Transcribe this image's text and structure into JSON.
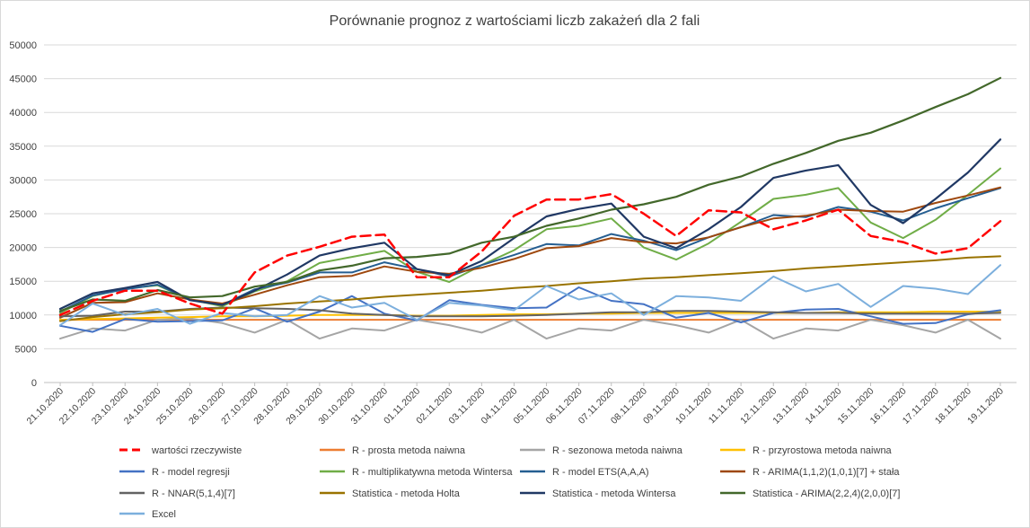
{
  "chart_data": {
    "type": "line",
    "title": "Porównanie prognoz z wartościami liczb zakażeń dla 2 fali",
    "xlabel": "",
    "ylabel": "",
    "ylim": [
      0,
      50000
    ],
    "yticks": [
      0,
      5000,
      10000,
      15000,
      20000,
      25000,
      30000,
      35000,
      40000,
      45000,
      50000
    ],
    "grid": true,
    "legend_position": "bottom",
    "categories": [
      "21.10.2020",
      "22.10.2020",
      "23.10.2020",
      "24.10.2020",
      "25.10.2020",
      "26.10.2020",
      "27.10.2020",
      "28.10.2020",
      "29.10.2020",
      "30.10.2020",
      "31.10.2020",
      "01.11.2020",
      "02.11.2020",
      "03.11.2020",
      "04.11.2020",
      "05.11.2020",
      "06.11.2020",
      "07.11.2020",
      "08.11.2020",
      "09.11.2020",
      "10.11.2020",
      "11.11.2020",
      "12.11.2020",
      "13.11.2020",
      "14.11.2020",
      "15.11.2020",
      "16.11.2020",
      "17.11.2020",
      "18.11.2020",
      "19.11.2020"
    ],
    "series": [
      {
        "name": "wartości rzeczywiste",
        "color": "#ff0000",
        "dashed": true,
        "width": 2.5,
        "values": [
          10000,
          12100,
          13600,
          13600,
          11700,
          10200,
          16300,
          18800,
          20100,
          21600,
          21900,
          15600,
          15600,
          19400,
          24700,
          27100,
          27100,
          27900,
          25000,
          21700,
          25500,
          25200,
          22700,
          24000,
          25600,
          21700,
          20800,
          19100,
          19900,
          23900
        ]
      },
      {
        "name": "R - prosta metoda naiwna",
        "color": "#ed7d31",
        "width": 2,
        "values": [
          9300,
          9300,
          9300,
          9300,
          9300,
          9300,
          9300,
          9300,
          9300,
          9300,
          9300,
          9300,
          9300,
          9300,
          9300,
          9300,
          9300,
          9300,
          9300,
          9300,
          9300,
          9300,
          9300,
          9300,
          9300,
          9300,
          9300,
          9300,
          9300,
          9300
        ]
      },
      {
        "name": "R - sezonowa metoda naiwna",
        "color": "#a5a5a5",
        "width": 2,
        "values": [
          6500,
          8000,
          7700,
          9300,
          9500,
          8800,
          7400,
          9300,
          6500,
          8000,
          7700,
          9300,
          8500,
          7400,
          9300,
          6500,
          8000,
          7700,
          9300,
          8500,
          7400,
          9300,
          6500,
          8000,
          7700,
          9300,
          8500,
          7400,
          9300,
          6500
        ]
      },
      {
        "name": "R - przyrostowa metoda naiwna",
        "color": "#ffc000",
        "width": 2,
        "values": [
          9300,
          9400,
          9500,
          9600,
          9700,
          9800,
          9800,
          9900,
          10000,
          10000,
          10000,
          9900,
          9900,
          10000,
          10100,
          10100,
          10200,
          10200,
          10300,
          10300,
          10300,
          10300,
          10300,
          10300,
          10400,
          10400,
          10400,
          10500,
          10500,
          10500
        ]
      },
      {
        "name": "R - model regresji",
        "color": "#4472c4",
        "width": 2,
        "values": [
          8400,
          7500,
          9400,
          9000,
          9100,
          9200,
          11000,
          9000,
          10500,
          12800,
          10200,
          9200,
          12200,
          11500,
          11000,
          11100,
          14100,
          12100,
          11600,
          9600,
          10300,
          8900,
          10300,
          10800,
          10900,
          9800,
          8700,
          8800,
          10100,
          10700
        ]
      },
      {
        "name": "R - multiplikatywna metoda Wintersa",
        "color": "#70ad47",
        "width": 2,
        "values": [
          10300,
          12800,
          13900,
          14400,
          12300,
          11300,
          13500,
          15000,
          17700,
          18600,
          19500,
          16400,
          14900,
          17400,
          19600,
          22700,
          23200,
          24300,
          20000,
          18200,
          20600,
          23800,
          27200,
          27800,
          28800,
          23700,
          21400,
          24100,
          27800,
          31700
        ]
      },
      {
        "name": "R - model ETS(A,A,A)",
        "color": "#255e91",
        "width": 2,
        "values": [
          10500,
          12900,
          13800,
          14500,
          12300,
          11500,
          13800,
          14800,
          16300,
          16300,
          17800,
          16800,
          15700,
          17400,
          18900,
          20500,
          20300,
          22000,
          21000,
          19600,
          21500,
          23000,
          24800,
          24500,
          26000,
          25300,
          24000,
          25800,
          27300,
          28800
        ]
      },
      {
        "name": "R - ARIMA(1,1,2)(1,0,1)[7] + stała",
        "color": "#9e480e",
        "width": 2,
        "values": [
          9600,
          11800,
          11900,
          13200,
          12300,
          11700,
          13000,
          14400,
          15600,
          15800,
          17200,
          16400,
          16100,
          17000,
          18300,
          19900,
          20200,
          21400,
          20800,
          20600,
          21500,
          23000,
          24300,
          24700,
          25600,
          25400,
          25300,
          26600,
          27700,
          28900
        ]
      },
      {
        "name": "R - NNAR(5,1,4)[7]",
        "color": "#636363",
        "width": 2,
        "values": [
          9800,
          9900,
          10500,
          10500,
          10900,
          11100,
          11000,
          10900,
          10700,
          10200,
          10000,
          9800,
          9800,
          9800,
          9900,
          10000,
          10200,
          10400,
          10400,
          10600,
          10600,
          10500,
          10400,
          10300,
          10300,
          10200,
          10200,
          10200,
          10200,
          10300
        ]
      },
      {
        "name": "Statistica - metoda Holta",
        "color": "#997300",
        "width": 2,
        "values": [
          9100,
          9700,
          10100,
          10400,
          10800,
          11000,
          11300,
          11700,
          12000,
          12300,
          12700,
          13000,
          13300,
          13600,
          14000,
          14300,
          14700,
          15000,
          15400,
          15600,
          15900,
          16200,
          16500,
          16900,
          17200,
          17500,
          17800,
          18100,
          18500,
          18700
        ]
      },
      {
        "name": "Statistica - metoda Wintersa",
        "color": "#203864",
        "width": 2.2,
        "values": [
          10900,
          13200,
          14000,
          14900,
          12200,
          11500,
          13600,
          16000,
          18800,
          19900,
          20700,
          16800,
          15900,
          18000,
          21400,
          24600,
          25700,
          26500,
          21600,
          19900,
          22700,
          26000,
          30300,
          31400,
          32200,
          26300,
          23600,
          27200,
          31100,
          36000
        ]
      },
      {
        "name": "Statistica - ARIMA(2,2,4)(2,0,0)[7]",
        "color": "#43682b",
        "width": 2.2,
        "values": [
          10600,
          12300,
          12100,
          13700,
          12600,
          12800,
          14200,
          14900,
          16600,
          17300,
          18400,
          18600,
          19100,
          20700,
          21600,
          23200,
          24300,
          25600,
          26400,
          27500,
          29300,
          30500,
          32400,
          34000,
          35800,
          37000,
          38800,
          40800,
          42700,
          45100
        ]
      },
      {
        "name": "Excel",
        "color": "#7cafdd",
        "width": 2,
        "values": [
          8500,
          11700,
          10000,
          10900,
          8700,
          10300,
          9800,
          10000,
          12800,
          11100,
          11800,
          9300,
          11800,
          11400,
          10700,
          14300,
          12300,
          13200,
          10000,
          12800,
          12600,
          12100,
          15700,
          13500,
          14600,
          11200,
          14300,
          13900,
          13100,
          17400
        ]
      }
    ]
  }
}
